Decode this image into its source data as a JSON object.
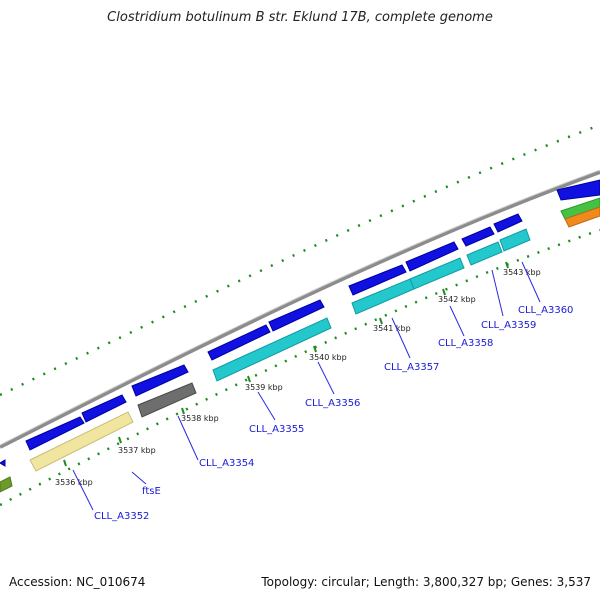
{
  "title": "Clostridium botulinum B str. Eklund 17B, complete genome",
  "footer": {
    "accession": "Accession: NC_010674",
    "summary": "Topology: circular; Length: 3,800,327 bp; Genes: 3,537"
  },
  "colors": {
    "backbone": "#8c8c8c",
    "forward_cds": "#1010e0",
    "reverse_cds": "#22c8cc",
    "gene_yellow": "#f0e6a0",
    "gene_gray": "#6e6e6e",
    "gc_dots": "#1e8c1e",
    "label": "#1a1ad6",
    "leader": "#2a2ae0",
    "green_feature": "#43c243",
    "orange_feature": "#f08a1e",
    "olive_feature": "#6e9a2a"
  },
  "ticks": [
    "3536 kbp",
    "3537 kbp",
    "3538 kbp",
    "3539 kbp",
    "3540 kbp",
    "3541 kbp",
    "3542 kbp",
    "3543 kbp"
  ],
  "gene_labels": [
    "CLL_A3352",
    "ftsE",
    "CLL_A3354",
    "CLL_A3355",
    "CLL_A3356",
    "CLL_A3357",
    "CLL_A3358",
    "CLL_A3359",
    "CLL_A3360"
  ]
}
